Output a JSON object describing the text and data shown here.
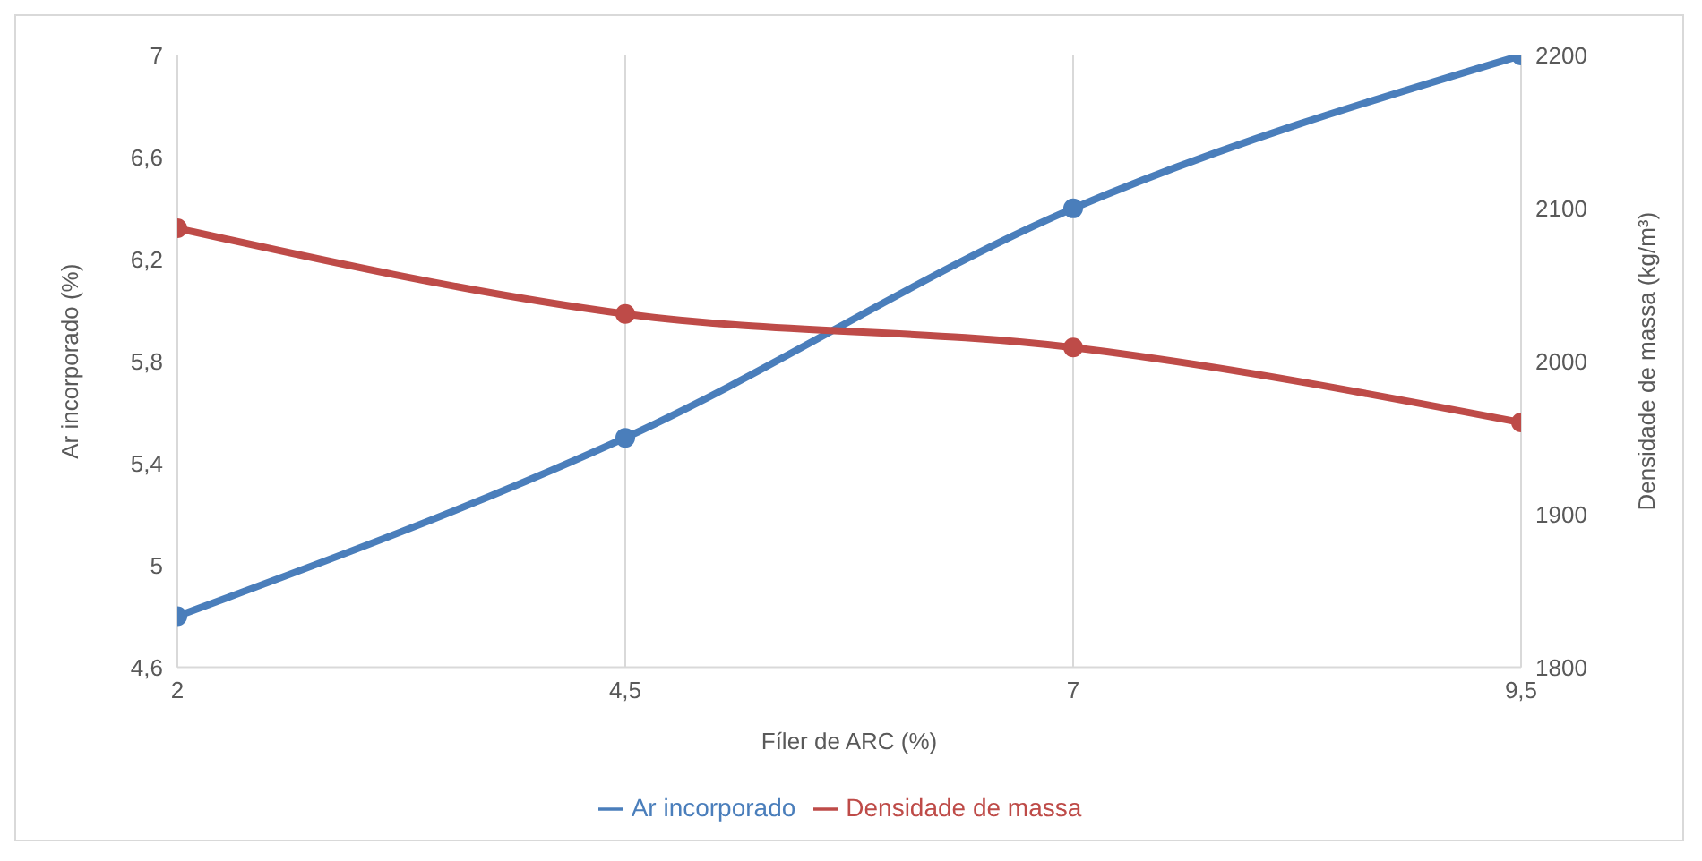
{
  "chart_data": {
    "type": "line",
    "xlabel": "Fíler de ARC (%)",
    "ylabel": "Ar incorporado (%)",
    "y2label": "Densidade de massa (kg/m³)",
    "x": [
      2,
      4.5,
      7,
      9.5
    ],
    "series": [
      {
        "name": "Ar incorporado",
        "color": "#4a7ebb",
        "values": [
          4.8,
          5.5,
          6.4,
          7.0
        ]
      },
      {
        "name": "Densidade de massa",
        "color": "#be4b48",
        "values": [
          2087,
          2031,
          2009,
          1960
        ],
        "axis": "y2"
      }
    ],
    "xlim": [
      2,
      9.5
    ],
    "xticks": [
      2,
      {
        "value": 4.5,
        "label": "4,5"
      },
      7,
      {
        "value": 9.5,
        "label": "9,5"
      }
    ],
    "ylim": [
      4.6,
      7
    ],
    "yticks": [
      {
        "value": 4.6,
        "label": "4,6"
      },
      5,
      {
        "value": 5.4,
        "label": "5,4"
      },
      {
        "value": 5.8,
        "label": "5,8"
      },
      {
        "value": 6.2,
        "label": "6,2"
      },
      {
        "value": 6.6,
        "label": "6,6"
      },
      7
    ],
    "y2lim": [
      1800,
      2200
    ],
    "y2ticks": [
      1800,
      1900,
      2000,
      2100,
      2200
    ],
    "grid": "x",
    "legend": "bottom",
    "marker": "circle",
    "line_style": "solid"
  }
}
